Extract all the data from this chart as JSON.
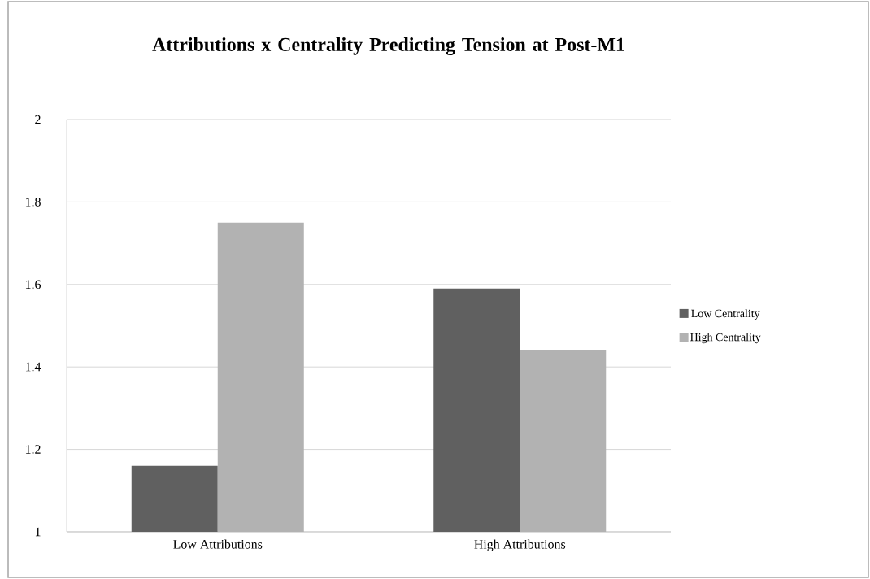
{
  "chart_data": {
    "type": "bar",
    "title": "Attributions x Centrality Predicting Tension at Post-M1",
    "categories": [
      "Low Attributions",
      "High Attributions"
    ],
    "series": [
      {
        "name": "Low Centrality",
        "color": "#606060",
        "values": [
          1.16,
          1.59
        ]
      },
      {
        "name": "High Centrality",
        "color": "#b2b2b2",
        "values": [
          1.75,
          1.44
        ]
      }
    ],
    "ylim": [
      1,
      2
    ],
    "yticks": [
      1,
      1.2,
      1.4,
      1.6,
      1.8,
      2
    ],
    "grid": "y",
    "legend": "right"
  }
}
